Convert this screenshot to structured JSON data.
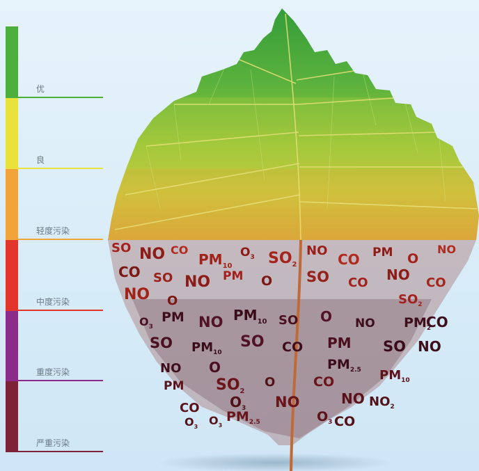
{
  "scale": {
    "levels": [
      {
        "label": "优",
        "color": "#4caf3c"
      },
      {
        "label": "良",
        "color": "#e8e23a"
      },
      {
        "label": "轻度污染",
        "color": "#f2a33a"
      },
      {
        "label": "中度污染",
        "color": "#e2352b"
      },
      {
        "label": "重度污染",
        "color": "#8c2c8a"
      },
      {
        "label": "严重污染",
        "color": "#7e2238"
      }
    ]
  },
  "pollutants": {
    "so2": "SO",
    "no2": "NO",
    "co": "CO",
    "o3": "O",
    "pm25": "PM",
    "pm10": "PM",
    "no": "NO",
    "sub2": "2",
    "sub3": "3",
    "sub25": "2.5",
    "sub10": "10"
  }
}
